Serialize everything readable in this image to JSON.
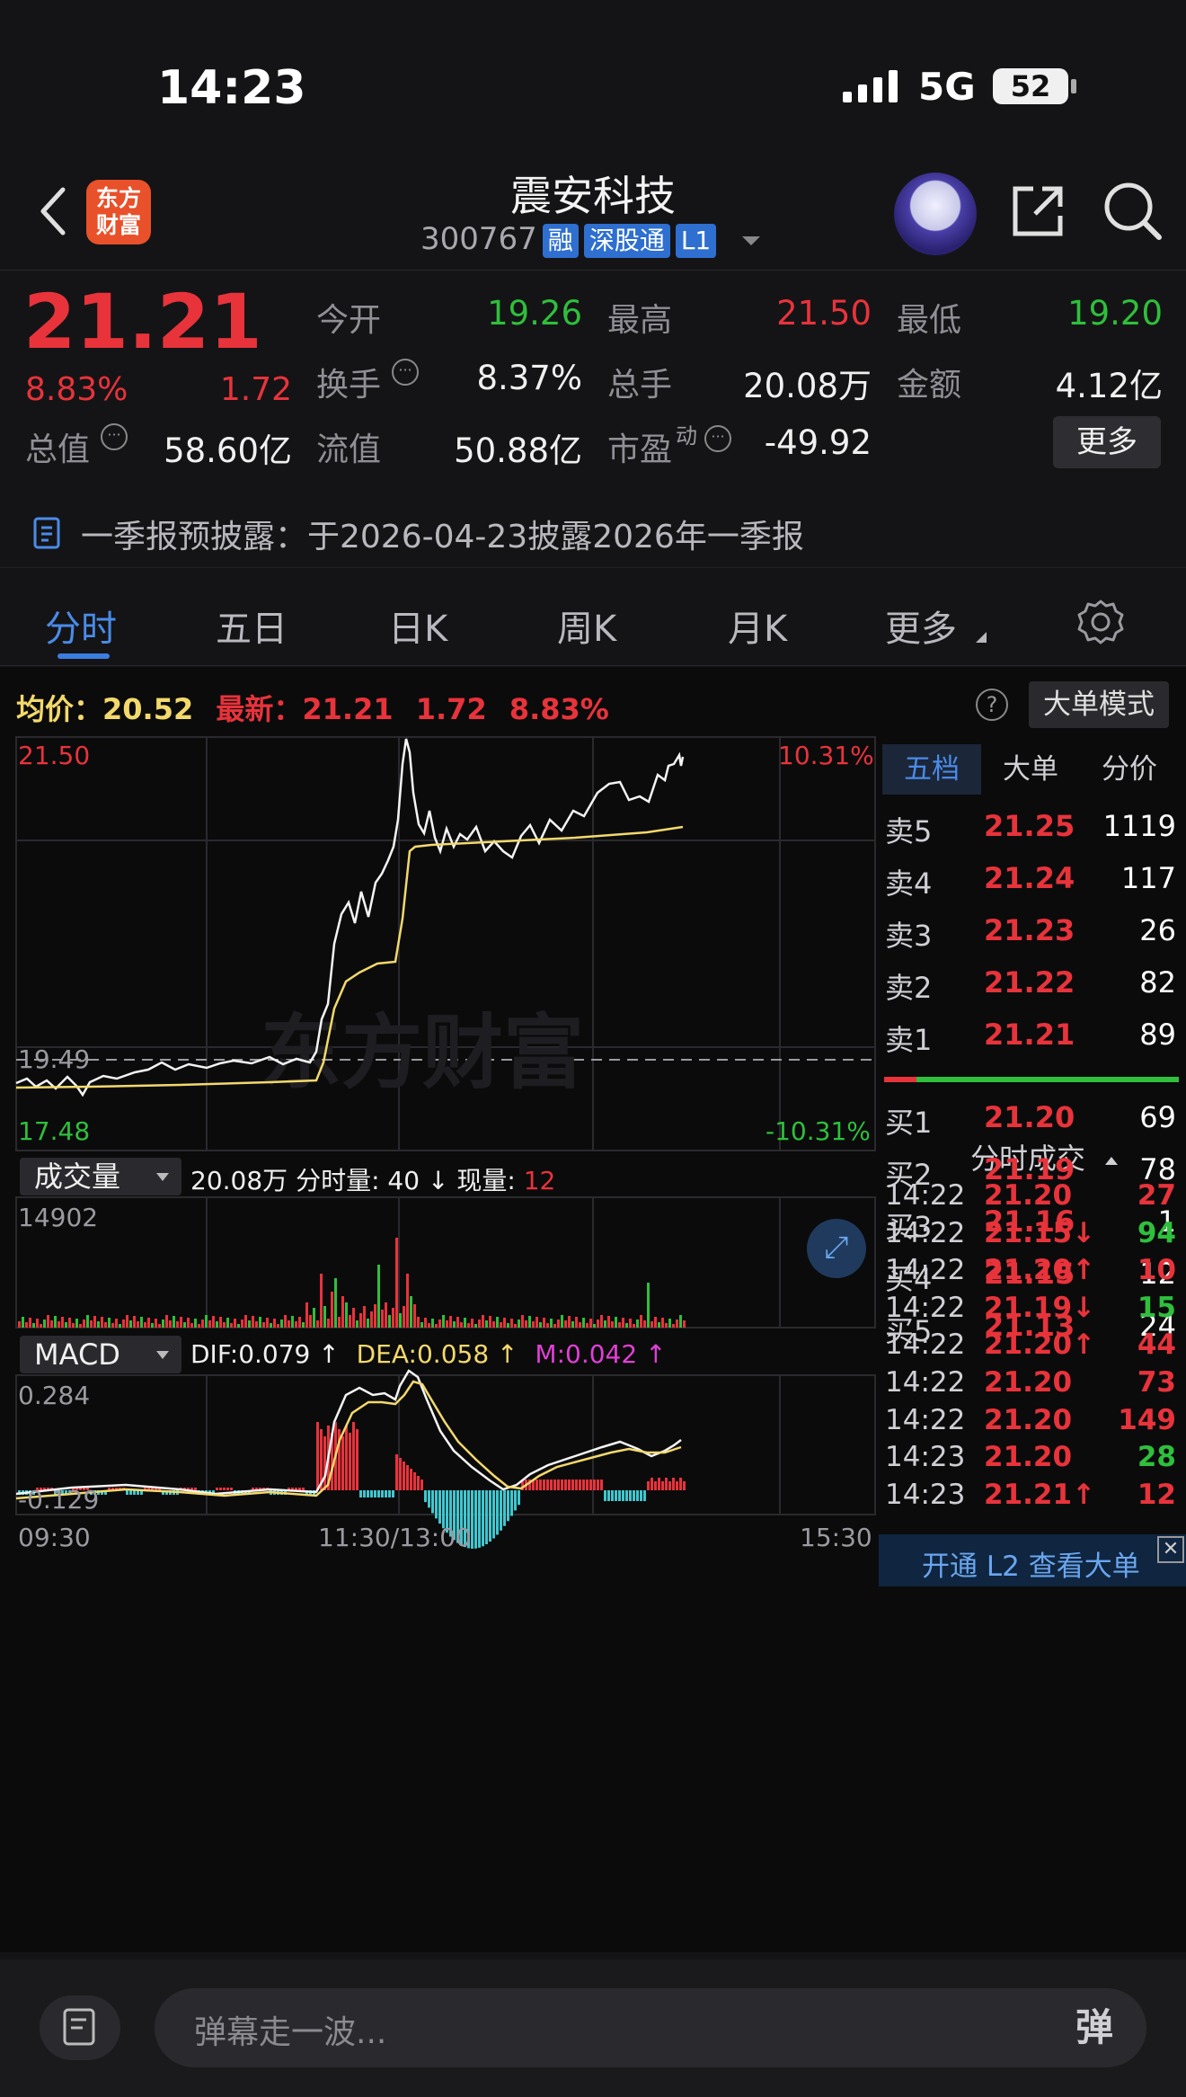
{
  "status": {
    "time": "14:23",
    "network": "5G",
    "battery": "52"
  },
  "header": {
    "title": "震安科技",
    "code": "300767",
    "tags": [
      "融",
      "深股通",
      "L1"
    ],
    "logo_line1": "东方",
    "logo_line2": "财富"
  },
  "quote": {
    "price": "21.21",
    "pct": "8.83%",
    "chg": "1.72",
    "open_label": "今开",
    "open": "19.26",
    "high_label": "最高",
    "high": "21.50",
    "low_label": "最低",
    "low": "19.20",
    "turnover_label": "换手",
    "turnover": "8.37%",
    "volume_label": "总手",
    "volume": "20.08万",
    "amount_label": "金额",
    "amount": "4.12亿",
    "mcap_label": "总值",
    "mcap": "58.60亿",
    "float_label": "流值",
    "float": "50.88亿",
    "pe_label": "市盈",
    "pe_sup": "动",
    "pe": "-49.92",
    "more": "更多"
  },
  "notice": "一季报预披露：于2026-04-23披露2026年一季报",
  "tabs": [
    "分时",
    "五日",
    "日K",
    "周K",
    "月K",
    "更多"
  ],
  "chart": {
    "avg_label": "均价：",
    "avg": "20.52",
    "latest_label": "最新：",
    "latest": "21.21",
    "latest_chg": "1.72",
    "latest_pct": "8.83%",
    "bigmode": "大单模式",
    "help": "?",
    "y_top": "21.50",
    "y_mid": "19.49",
    "y_bot": "17.48",
    "pct_top": "10.31%",
    "pct_bot": "-10.31%",
    "vol_label": "成交量",
    "vol_total": "20.08万",
    "vol_seg_label": "分时量:",
    "vol_seg": "40",
    "vol_now_label": "现量:",
    "vol_now": "12",
    "vol_max": "14902",
    "macd_label": "MACD",
    "dif_label": "DIF:",
    "dif": "0.079",
    "dea_label": "DEA:",
    "dea": "0.058",
    "m_label": "M:",
    "m": "0.042",
    "macd_top": "0.284",
    "macd_bot": "-0.129",
    "x_start": "09:30",
    "x_mid": "11:30/13:00",
    "x_end": "15:30",
    "watermark": "东方财富"
  },
  "orderbook": {
    "tabs": [
      "五档",
      "大单",
      "分价"
    ],
    "asks": [
      {
        "l": "卖5",
        "p": "21.25",
        "v": "1119"
      },
      {
        "l": "卖4",
        "p": "21.24",
        "v": "117"
      },
      {
        "l": "卖3",
        "p": "21.23",
        "v": "26"
      },
      {
        "l": "卖2",
        "p": "21.22",
        "v": "82"
      },
      {
        "l": "卖1",
        "p": "21.21",
        "v": "89"
      }
    ],
    "bids": [
      {
        "l": "买1",
        "p": "21.20",
        "v": "69"
      },
      {
        "l": "买2",
        "p": "21.19",
        "v": "78"
      },
      {
        "l": "买3",
        "p": "21.16",
        "v": "1"
      },
      {
        "l": "买4",
        "p": "21.15",
        "v": "12"
      },
      {
        "l": "买5",
        "p": "21.13",
        "v": "24"
      }
    ],
    "ticks_title": "分时成交",
    "ticks": [
      {
        "t": "14:22",
        "p": "21.20",
        "a": "",
        "v": "27",
        "c": "up"
      },
      {
        "t": "14:22",
        "p": "21.15",
        "a": "↓",
        "v": "94",
        "c": "dn"
      },
      {
        "t": "14:22",
        "p": "21.20",
        "a": "↑",
        "v": "10",
        "c": "up"
      },
      {
        "t": "14:22",
        "p": "21.19",
        "a": "↓",
        "v": "15",
        "c": "dn"
      },
      {
        "t": "14:22",
        "p": "21.20",
        "a": "↑",
        "v": "44",
        "c": "up"
      },
      {
        "t": "14:22",
        "p": "21.20",
        "a": "",
        "v": "73",
        "c": "up"
      },
      {
        "t": "14:22",
        "p": "21.20",
        "a": "",
        "v": "149",
        "c": "up"
      },
      {
        "t": "14:23",
        "p": "21.20",
        "a": "",
        "v": "28",
        "c": "dn"
      },
      {
        "t": "14:23",
        "p": "21.21",
        "a": "↑",
        "v": "12",
        "c": "up"
      }
    ],
    "l2": "开通 L2 查看大单"
  },
  "bottom": {
    "placeholder": "弹幕走一波...",
    "danmu": "弹"
  }
}
